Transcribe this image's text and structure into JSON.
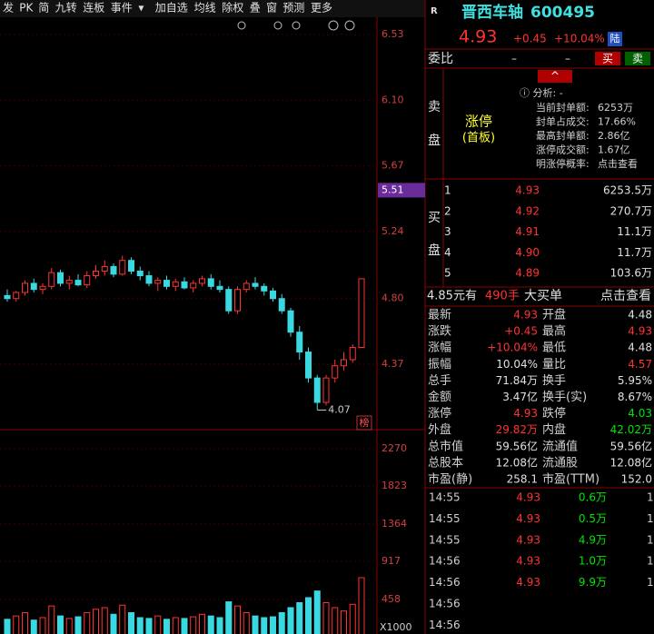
{
  "toolbar": {
    "items": [
      "发",
      "PK",
      "简",
      "九转",
      "连板",
      "事件",
      "▾",
      "加自选",
      "均线",
      "除权",
      "叠",
      "窗",
      "预测",
      "更多"
    ]
  },
  "kline": {
    "price_ticks": [
      6.53,
      {
        "value": 6.1,
        "label": "6.10"
      },
      5.67,
      5.24,
      {
        "value": 4.8,
        "label": "4.80"
      },
      4.37
    ],
    "ylim": [
      3.82,
      6.62
    ],
    "marker": 5.51,
    "low_label": 4.07,
    "badge": "榜",
    "candles": [
      [
        4.82,
        4.86,
        4.78,
        4.8
      ],
      [
        4.8,
        4.85,
        4.78,
        4.84
      ],
      [
        4.84,
        4.92,
        4.82,
        4.9
      ],
      [
        4.9,
        4.93,
        4.84,
        4.86
      ],
      [
        4.86,
        4.9,
        4.83,
        4.88
      ],
      [
        4.88,
        5.0,
        4.86,
        4.97
      ],
      [
        4.97,
        4.99,
        4.88,
        4.9
      ],
      [
        4.9,
        4.95,
        4.86,
        4.92
      ],
      [
        4.92,
        4.96,
        4.88,
        4.89
      ],
      [
        4.89,
        4.98,
        4.87,
        4.95
      ],
      [
        4.95,
        5.02,
        4.93,
        4.98
      ],
      [
        4.98,
        5.05,
        4.95,
        5.01
      ],
      [
        5.01,
        5.03,
        4.94,
        4.96
      ],
      [
        4.96,
        5.08,
        4.95,
        5.05
      ],
      [
        5.05,
        5.07,
        4.96,
        4.98
      ],
      [
        4.98,
        5.01,
        4.92,
        4.95
      ],
      [
        4.95,
        4.98,
        4.88,
        4.9
      ],
      [
        4.9,
        4.94,
        4.85,
        4.92
      ],
      [
        4.92,
        4.95,
        4.86,
        4.88
      ],
      [
        4.88,
        4.93,
        4.85,
        4.91
      ],
      [
        4.91,
        4.94,
        4.86,
        4.87
      ],
      [
        4.87,
        4.92,
        4.84,
        4.9
      ],
      [
        4.9,
        4.95,
        4.88,
        4.93
      ],
      [
        4.93,
        4.96,
        4.86,
        4.88
      ],
      [
        4.88,
        4.92,
        4.84,
        4.86
      ],
      [
        4.86,
        4.88,
        4.7,
        4.72
      ],
      [
        4.72,
        4.88,
        4.7,
        4.86
      ],
      [
        4.86,
        4.92,
        4.84,
        4.9
      ],
      [
        4.9,
        4.94,
        4.86,
        4.88
      ],
      [
        4.88,
        4.9,
        4.82,
        4.85
      ],
      [
        4.85,
        4.87,
        4.78,
        4.8
      ],
      [
        4.8,
        4.83,
        4.7,
        4.72
      ],
      [
        4.72,
        4.74,
        4.55,
        4.58
      ],
      [
        4.58,
        4.62,
        4.4,
        4.45
      ],
      [
        4.45,
        4.48,
        4.25,
        4.28
      ],
      [
        4.28,
        4.3,
        4.07,
        4.12
      ],
      [
        4.12,
        4.3,
        4.1,
        4.28
      ],
      [
        4.28,
        4.4,
        4.25,
        4.36
      ],
      [
        4.36,
        4.45,
        4.33,
        4.4
      ],
      [
        4.4,
        4.5,
        4.38,
        4.48
      ],
      [
        4.48,
        4.93,
        4.48,
        4.93
      ]
    ],
    "volume_ticks": [
      2270,
      1823,
      1364,
      917,
      458
    ],
    "volume_unit": "X1000",
    "vlim": [
      0,
      2310
    ],
    "volumes": [
      220,
      260,
      300,
      210,
      240,
      380,
      260,
      230,
      250,
      300,
      340,
      360,
      280,
      390,
      300,
      240,
      230,
      260,
      220,
      240,
      230,
      250,
      280,
      260,
      240,
      430,
      380,
      300,
      260,
      240,
      250,
      300,
      360,
      420,
      480,
      560,
      420,
      360,
      320,
      400,
      720
    ]
  },
  "header": {
    "market": "R",
    "name": "晋西车轴",
    "code": "600495",
    "price": "4.93",
    "change": "+0.45",
    "pct": "+10.04%",
    "tag": "陆"
  },
  "weibi": {
    "label": "委比",
    "v1": "–",
    "v2": "–",
    "buy": "买",
    "sell": "卖"
  },
  "sell_panel": {
    "label": [
      "卖",
      "盘"
    ],
    "status": "涨停",
    "sub": "(首板)",
    "analysis": "ⓘ 分析: -",
    "rows": [
      [
        "当前封单额:",
        "6253万"
      ],
      [
        "封单占成交:",
        "17.66%"
      ],
      [
        "最高封单额:",
        "2.86亿"
      ],
      [
        "涨停成交额:",
        "1.67亿"
      ],
      [
        "明涨停概率:",
        "点击查看"
      ]
    ]
  },
  "buy_panel": {
    "label": [
      "买",
      "盘"
    ],
    "rows": [
      [
        "1",
        "4.93",
        "6253.5万"
      ],
      [
        "2",
        "4.92",
        "270.7万"
      ],
      [
        "3",
        "4.91",
        "11.1万"
      ],
      [
        "4",
        "4.90",
        "11.7万"
      ],
      [
        "5",
        "4.89",
        "103.6万"
      ]
    ]
  },
  "trade": {
    "price": "4.85元有",
    "hands": "490手",
    "type": "大买单",
    "link": "点击查看"
  },
  "stats": [
    {
      "l1": "最新",
      "v1": "4.93",
      "c1": "#ff3232",
      "l2": "开盘",
      "v2": "4.48",
      "c2": "#e0e0e0"
    },
    {
      "l1": "涨跌",
      "v1": "+0.45",
      "c1": "#ff3232",
      "l2": "最高",
      "v2": "4.93",
      "c2": "#ff3232"
    },
    {
      "l1": "涨幅",
      "v1": "+10.04%",
      "c1": "#ff3232",
      "l2": "最低",
      "v2": "4.48",
      "c2": "#e0e0e0"
    },
    {
      "l1": "振幅",
      "v1": "10.04%",
      "c1": "#e0e0e0",
      "l2": "量比",
      "v2": "4.57",
      "c2": "#ff3232"
    },
    {
      "l1": "总手",
      "v1": "71.84万",
      "c1": "#e0e0e0",
      "l2": "换手",
      "v2": "5.95%",
      "c2": "#e0e0e0"
    },
    {
      "l1": "金额",
      "v1": "3.47亿",
      "c1": "#e0e0e0",
      "l2": "换手(实)",
      "v2": "8.67%",
      "c2": "#e0e0e0"
    },
    {
      "l1": "涨停",
      "v1": "4.93",
      "c1": "#ff3232",
      "l2": "跌停",
      "v2": "4.03",
      "c2": "#00e600"
    },
    {
      "l1": "外盘",
      "v1": "29.82万",
      "c1": "#ff3232",
      "l2": "内盘",
      "v2": "42.02万",
      "c2": "#00e600"
    },
    {
      "l1": "总市值",
      "v1": "59.56亿",
      "c1": "#e0e0e0",
      "l2": "流通值",
      "v2": "59.56亿",
      "c2": "#e0e0e0"
    },
    {
      "l1": "总股本",
      "v1": "12.08亿",
      "c1": "#e0e0e0",
      "l2": "流通股",
      "v2": "12.08亿",
      "c2": "#e0e0e0"
    },
    {
      "l1": "市盈(静)",
      "v1": "258.1",
      "c1": "#e0e0e0",
      "l2": "市盈(TTM)",
      "v2": "152.0",
      "c2": "#e0e0e0"
    }
  ],
  "ticks": [
    [
      "14:55",
      "4.93",
      "0.6万",
      "1"
    ],
    [
      "14:55",
      "4.93",
      "0.5万",
      "1"
    ],
    [
      "14:55",
      "4.93",
      "4.9万",
      "1"
    ],
    [
      "14:56",
      "4.93",
      "1.0万",
      "1"
    ],
    [
      "14:56",
      "4.93",
      "9.9万",
      "1"
    ],
    [
      "14:56"
    ],
    [
      "14:56"
    ]
  ]
}
